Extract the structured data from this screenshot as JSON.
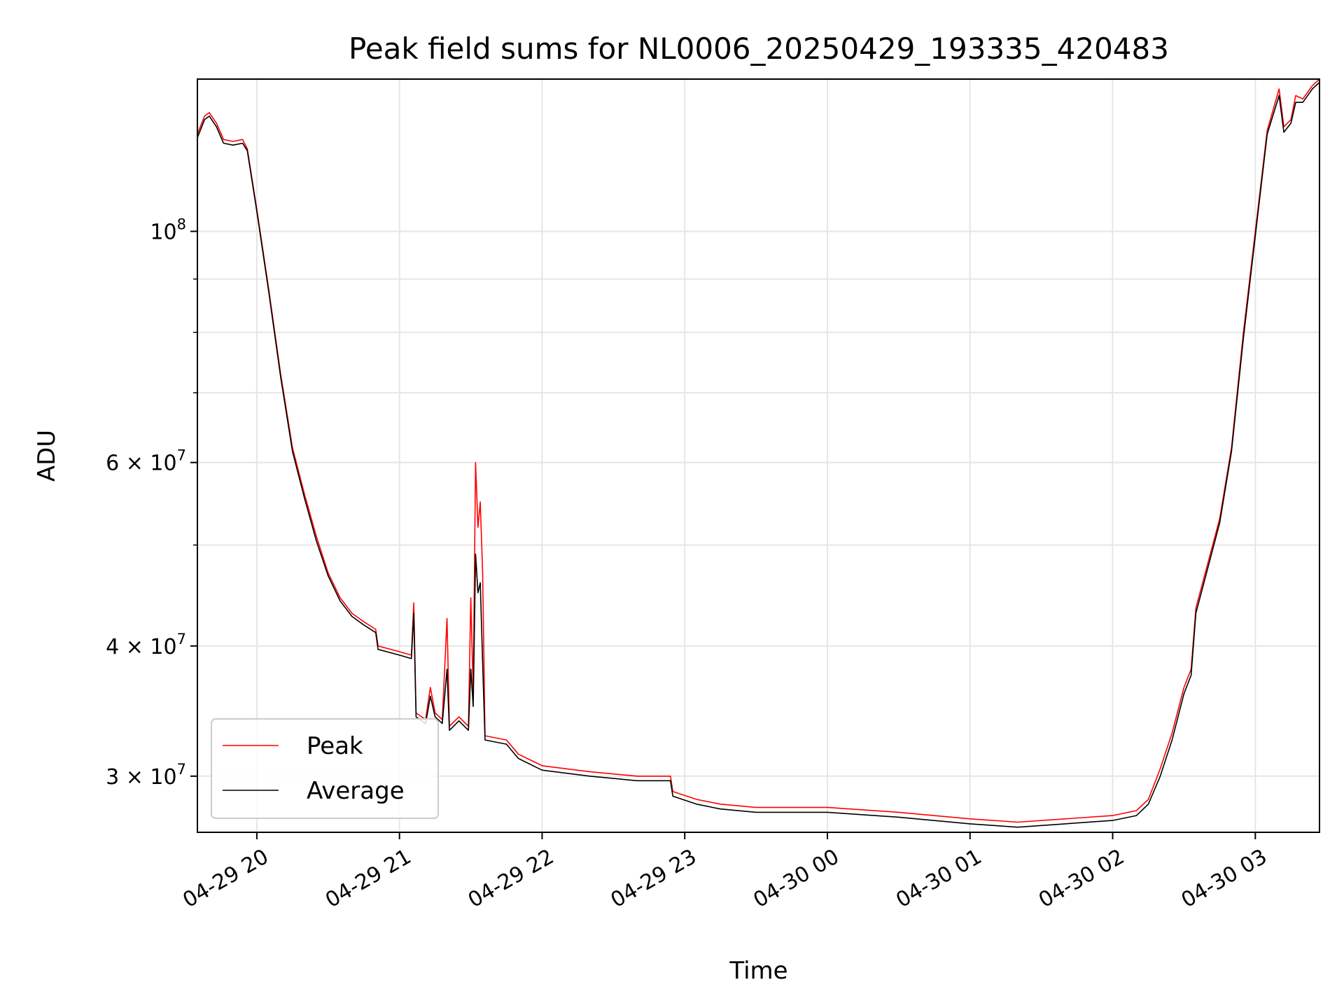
{
  "chart_data": {
    "type": "line",
    "title": "Peak field sums for NL0006_20250429_193335_420483",
    "xlabel": "Time",
    "ylabel": "ADU",
    "yscale": "log",
    "grid": true,
    "legend_position": "lower-left",
    "xlim": [
      "2025-04-29 19:35",
      "2025-04-30 03:27"
    ],
    "ylim": [
      26500000,
      140000000
    ],
    "x_ticks": [
      {
        "t": "2025-04-29 20:00",
        "label": "04-29 20"
      },
      {
        "t": "2025-04-29 21:00",
        "label": "04-29 21"
      },
      {
        "t": "2025-04-29 22:00",
        "label": "04-29 22"
      },
      {
        "t": "2025-04-29 23:00",
        "label": "04-29 23"
      },
      {
        "t": "2025-04-30 00:00",
        "label": "04-30 00"
      },
      {
        "t": "2025-04-30 01:00",
        "label": "04-30 01"
      },
      {
        "t": "2025-04-30 02:00",
        "label": "04-30 02"
      },
      {
        "t": "2025-04-30 03:00",
        "label": "04-30 03"
      }
    ],
    "y_ticks": [
      {
        "v": 30000000,
        "mantissa": "3",
        "exponent": "7"
      },
      {
        "v": 40000000,
        "mantissa": "4",
        "exponent": "7"
      },
      {
        "v": 60000000,
        "mantissa": "6",
        "exponent": "7"
      },
      {
        "v": 100000000,
        "mantissa": "",
        "exponent": "8"
      }
    ],
    "y_minor_ticks": [
      50000000,
      70000000,
      80000000,
      90000000
    ],
    "series": [
      {
        "name": "Peak",
        "color": "#ff0000",
        "points": [
          [
            "2025-04-29 19:35",
            124000000
          ],
          [
            "2025-04-29 19:38",
            129000000
          ],
          [
            "2025-04-29 19:40",
            130000000
          ],
          [
            "2025-04-29 19:43",
            127000000
          ],
          [
            "2025-04-29 19:46",
            122500000
          ],
          [
            "2025-04-29 19:50",
            122000000
          ],
          [
            "2025-04-29 19:54",
            122500000
          ],
          [
            "2025-04-29 19:56",
            120000000
          ],
          [
            "2025-04-29 20:00",
            105000000
          ],
          [
            "2025-04-29 20:05",
            88000000
          ],
          [
            "2025-04-29 20:10",
            73000000
          ],
          [
            "2025-04-29 20:15",
            62000000
          ],
          [
            "2025-04-29 20:20",
            56000000
          ],
          [
            "2025-04-29 20:25",
            51000000
          ],
          [
            "2025-04-29 20:30",
            47000000
          ],
          [
            "2025-04-29 20:35",
            44500000
          ],
          [
            "2025-04-29 20:40",
            43000000
          ],
          [
            "2025-04-29 20:45",
            42200000
          ],
          [
            "2025-04-29 20:50",
            41500000
          ],
          [
            "2025-04-29 20:51",
            40000000
          ],
          [
            "2025-04-29 21:00",
            39500000
          ],
          [
            "2025-04-29 21:05",
            39200000
          ],
          [
            "2025-04-29 21:06",
            44000000
          ],
          [
            "2025-04-29 21:07",
            34500000
          ],
          [
            "2025-04-29 21:11",
            34000000
          ],
          [
            "2025-04-29 21:13",
            36500000
          ],
          [
            "2025-04-29 21:15",
            34500000
          ],
          [
            "2025-04-29 21:18",
            34000000
          ],
          [
            "2025-04-29 21:20",
            42500000
          ],
          [
            "2025-04-29 21:21",
            33500000
          ],
          [
            "2025-04-29 21:25",
            34200000
          ],
          [
            "2025-04-29 21:29",
            33500000
          ],
          [
            "2025-04-29 21:30",
            44500000
          ],
          [
            "2025-04-29 21:31",
            36000000
          ],
          [
            "2025-04-29 21:32",
            60000000
          ],
          [
            "2025-04-29 21:33",
            52000000
          ],
          [
            "2025-04-29 21:34",
            55000000
          ],
          [
            "2025-04-29 21:35",
            47000000
          ],
          [
            "2025-04-29 21:36",
            32800000
          ],
          [
            "2025-04-29 21:45",
            32500000
          ],
          [
            "2025-04-29 21:50",
            31500000
          ],
          [
            "2025-04-29 22:00",
            30700000
          ],
          [
            "2025-04-29 22:20",
            30300000
          ],
          [
            "2025-04-29 22:40",
            30000000
          ],
          [
            "2025-04-29 22:54",
            30000000
          ],
          [
            "2025-04-29 22:55",
            29000000
          ],
          [
            "2025-04-29 23:05",
            28500000
          ],
          [
            "2025-04-29 23:15",
            28200000
          ],
          [
            "2025-04-29 23:30",
            28000000
          ],
          [
            "2025-04-30 00:00",
            28000000
          ],
          [
            "2025-04-30 00:30",
            27700000
          ],
          [
            "2025-04-30 01:00",
            27300000
          ],
          [
            "2025-04-30 01:20",
            27100000
          ],
          [
            "2025-04-30 01:40",
            27300000
          ],
          [
            "2025-04-30 02:00",
            27500000
          ],
          [
            "2025-04-30 02:10",
            27800000
          ],
          [
            "2025-04-30 02:15",
            28500000
          ],
          [
            "2025-04-30 02:20",
            30500000
          ],
          [
            "2025-04-30 02:25",
            33000000
          ],
          [
            "2025-04-30 02:30",
            36500000
          ],
          [
            "2025-04-30 02:33",
            38000000
          ],
          [
            "2025-04-30 02:35",
            43500000
          ],
          [
            "2025-04-30 02:40",
            48000000
          ],
          [
            "2025-04-30 02:45",
            53000000
          ],
          [
            "2025-04-30 02:50",
            62000000
          ],
          [
            "2025-04-30 02:55",
            80000000
          ],
          [
            "2025-04-30 03:00",
            100000000
          ],
          [
            "2025-04-30 03:05",
            125000000
          ],
          [
            "2025-04-30 03:10",
            137000000
          ],
          [
            "2025-04-30 03:12",
            126000000
          ],
          [
            "2025-04-30 03:15",
            128000000
          ],
          [
            "2025-04-30 03:17",
            135000000
          ],
          [
            "2025-04-30 03:20",
            134000000
          ],
          [
            "2025-04-30 03:24",
            138000000
          ],
          [
            "2025-04-30 03:27",
            140000000
          ]
        ]
      },
      {
        "name": "Average",
        "color": "#000000",
        "points": [
          [
            "2025-04-29 19:35",
            123000000
          ],
          [
            "2025-04-29 19:38",
            128000000
          ],
          [
            "2025-04-29 19:40",
            129000000
          ],
          [
            "2025-04-29 19:43",
            126000000
          ],
          [
            "2025-04-29 19:46",
            121500000
          ],
          [
            "2025-04-29 19:50",
            121000000
          ],
          [
            "2025-04-29 19:54",
            121500000
          ],
          [
            "2025-04-29 19:56",
            119500000
          ],
          [
            "2025-04-29 20:00",
            104500000
          ],
          [
            "2025-04-29 20:05",
            87500000
          ],
          [
            "2025-04-29 20:10",
            72500000
          ],
          [
            "2025-04-29 20:15",
            61500000
          ],
          [
            "2025-04-29 20:20",
            55500000
          ],
          [
            "2025-04-29 20:25",
            50500000
          ],
          [
            "2025-04-29 20:30",
            46700000
          ],
          [
            "2025-04-29 20:35",
            44200000
          ],
          [
            "2025-04-29 20:40",
            42700000
          ],
          [
            "2025-04-29 20:45",
            41900000
          ],
          [
            "2025-04-29 20:50",
            41200000
          ],
          [
            "2025-04-29 20:51",
            39700000
          ],
          [
            "2025-04-29 21:00",
            39200000
          ],
          [
            "2025-04-29 21:05",
            38900000
          ],
          [
            "2025-04-29 21:06",
            43000000
          ],
          [
            "2025-04-29 21:07",
            34200000
          ],
          [
            "2025-04-29 21:11",
            33700000
          ],
          [
            "2025-04-29 21:13",
            35800000
          ],
          [
            "2025-04-29 21:15",
            34200000
          ],
          [
            "2025-04-29 21:18",
            33700000
          ],
          [
            "2025-04-29 21:20",
            38000000
          ],
          [
            "2025-04-29 21:21",
            33200000
          ],
          [
            "2025-04-29 21:25",
            33900000
          ],
          [
            "2025-04-29 21:29",
            33200000
          ],
          [
            "2025-04-29 21:30",
            38000000
          ],
          [
            "2025-04-29 21:31",
            35000000
          ],
          [
            "2025-04-29 21:32",
            49000000
          ],
          [
            "2025-04-29 21:33",
            45000000
          ],
          [
            "2025-04-29 21:34",
            46000000
          ],
          [
            "2025-04-29 21:35",
            38500000
          ],
          [
            "2025-04-29 21:36",
            32500000
          ],
          [
            "2025-04-29 21:45",
            32200000
          ],
          [
            "2025-04-29 21:50",
            31200000
          ],
          [
            "2025-04-29 22:00",
            30400000
          ],
          [
            "2025-04-29 22:20",
            30000000
          ],
          [
            "2025-04-29 22:40",
            29700000
          ],
          [
            "2025-04-29 22:54",
            29700000
          ],
          [
            "2025-04-29 22:55",
            28700000
          ],
          [
            "2025-04-29 23:05",
            28200000
          ],
          [
            "2025-04-29 23:15",
            27900000
          ],
          [
            "2025-04-29 23:30",
            27700000
          ],
          [
            "2025-04-30 00:00",
            27700000
          ],
          [
            "2025-04-30 00:30",
            27400000
          ],
          [
            "2025-04-30 01:00",
            27000000
          ],
          [
            "2025-04-30 01:20",
            26800000
          ],
          [
            "2025-04-30 01:40",
            27000000
          ],
          [
            "2025-04-30 02:00",
            27200000
          ],
          [
            "2025-04-30 02:10",
            27500000
          ],
          [
            "2025-04-30 02:15",
            28200000
          ],
          [
            "2025-04-30 02:20",
            30000000
          ],
          [
            "2025-04-30 02:25",
            32500000
          ],
          [
            "2025-04-30 02:30",
            36000000
          ],
          [
            "2025-04-30 02:33",
            37500000
          ],
          [
            "2025-04-30 02:35",
            43000000
          ],
          [
            "2025-04-30 02:40",
            47500000
          ],
          [
            "2025-04-30 02:45",
            52500000
          ],
          [
            "2025-04-30 02:50",
            61500000
          ],
          [
            "2025-04-30 02:55",
            79000000
          ],
          [
            "2025-04-30 03:00",
            99000000
          ],
          [
            "2025-04-30 03:05",
            124000000
          ],
          [
            "2025-04-30 03:10",
            135000000
          ],
          [
            "2025-04-30 03:12",
            124500000
          ],
          [
            "2025-04-30 03:15",
            127000000
          ],
          [
            "2025-04-30 03:17",
            133000000
          ],
          [
            "2025-04-30 03:20",
            133000000
          ],
          [
            "2025-04-30 03:24",
            137000000
          ],
          [
            "2025-04-30 03:27",
            139000000
          ]
        ]
      }
    ]
  }
}
